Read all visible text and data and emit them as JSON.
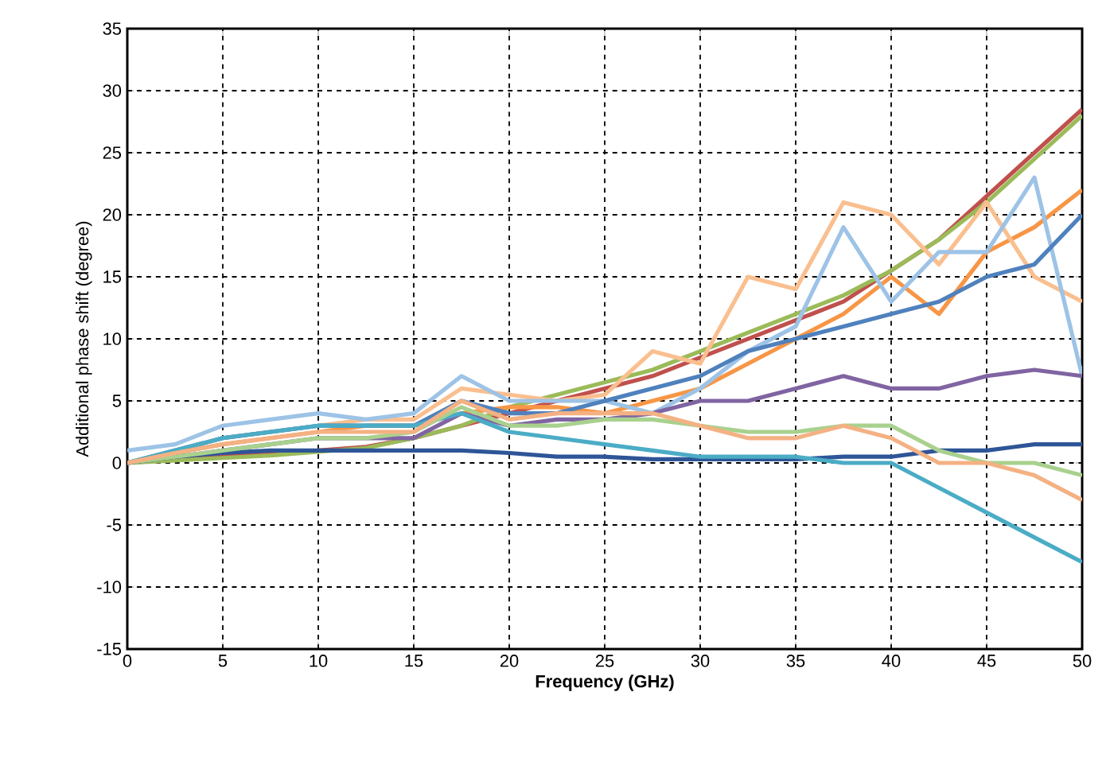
{
  "chart_data": {
    "type": "line",
    "xlabel": "Frequency (GHz)",
    "ylabel": "Additional phase shift  (degree)",
    "x": [
      0,
      2.5,
      5,
      7.5,
      10,
      12.5,
      15,
      17.5,
      20,
      22.5,
      25,
      27.5,
      30,
      32.5,
      35,
      37.5,
      40,
      42.5,
      45,
      47.5,
      50
    ],
    "series": [
      {
        "color": "#c0504d",
        "values": [
          0,
          0.3,
          0.5,
          0.8,
          1,
          1.3,
          2,
          3,
          4,
          5,
          6,
          7,
          8.5,
          10,
          11.5,
          13,
          15.5,
          18,
          21.5,
          25,
          28.5
        ]
      },
      {
        "color": "#9bbb59",
        "values": [
          0,
          0.2,
          0.4,
          0.6,
          0.9,
          1.2,
          2,
          3,
          4.5,
          5.5,
          6.5,
          7.5,
          9,
          10.5,
          12,
          13.5,
          15.5,
          18,
          21,
          24.5,
          28
        ]
      },
      {
        "color": "#f79646",
        "values": [
          0,
          0.8,
          1.5,
          2,
          2.5,
          3,
          3,
          4,
          4.5,
          4.5,
          4,
          5,
          6,
          8,
          10,
          12,
          15,
          12,
          17,
          19,
          22
        ]
      },
      {
        "color": "#fabf8f",
        "values": [
          0,
          1,
          2,
          2.5,
          3,
          3.5,
          3.5,
          6,
          5.5,
          5,
          5.5,
          9,
          8,
          15,
          14,
          21,
          20,
          16,
          21,
          15,
          13
        ]
      },
      {
        "color": "#9dc3e6",
        "values": [
          1,
          1.5,
          3,
          3.5,
          4,
          3.5,
          4,
          7,
          5,
          5,
          5,
          4,
          6,
          9,
          11,
          19,
          13,
          17,
          17,
          23,
          7
        ]
      },
      {
        "color": "#4f81bd",
        "values": [
          0,
          1,
          2,
          2.5,
          3,
          3,
          3,
          5,
          4,
          4,
          5,
          6,
          7,
          9,
          10,
          11,
          12,
          13,
          15,
          16,
          20
        ]
      },
      {
        "color": "#8064a2",
        "values": [
          0,
          0.5,
          1,
          1.5,
          2,
          2,
          2,
          4,
          3,
          3.5,
          3.5,
          4,
          5,
          5,
          6,
          7,
          6,
          6,
          7,
          7.5,
          7
        ]
      },
      {
        "color": "#2e5597",
        "values": [
          0,
          0.5,
          0.8,
          1,
          1,
          1,
          1,
          1,
          0.8,
          0.5,
          0.5,
          0.3,
          0.3,
          0.3,
          0.3,
          0.5,
          0.5,
          1,
          1,
          1.5,
          1.5
        ]
      },
      {
        "color": "#4bacc6",
        "values": [
          0,
          1,
          2,
          2.5,
          3,
          3,
          3,
          4,
          2.5,
          2,
          1.5,
          1,
          0.5,
          0.5,
          0.5,
          0,
          0,
          -2,
          -4,
          -6,
          -8
        ]
      },
      {
        "color": "#a9d18e",
        "values": [
          0,
          0.5,
          1,
          1.5,
          2,
          2,
          2.5,
          4.5,
          3,
          3,
          3.5,
          3.5,
          3,
          2.5,
          2.5,
          3,
          3,
          1,
          0,
          0,
          -1
        ]
      },
      {
        "color": "#f4b183",
        "values": [
          0,
          0.8,
          1.5,
          2,
          2.5,
          2.5,
          2.5,
          5,
          3.5,
          4,
          4,
          4,
          3,
          2,
          2,
          3,
          2,
          0,
          0,
          -1,
          -3
        ]
      }
    ],
    "xlim": [
      0,
      50
    ],
    "ylim": [
      -15,
      35
    ],
    "xticks": [
      0,
      5,
      10,
      15,
      20,
      25,
      30,
      35,
      40,
      45,
      50
    ],
    "yticks": [
      -15,
      -10,
      -5,
      0,
      5,
      10,
      15,
      20,
      25,
      30,
      35
    ],
    "grid": true,
    "marker": "none"
  }
}
